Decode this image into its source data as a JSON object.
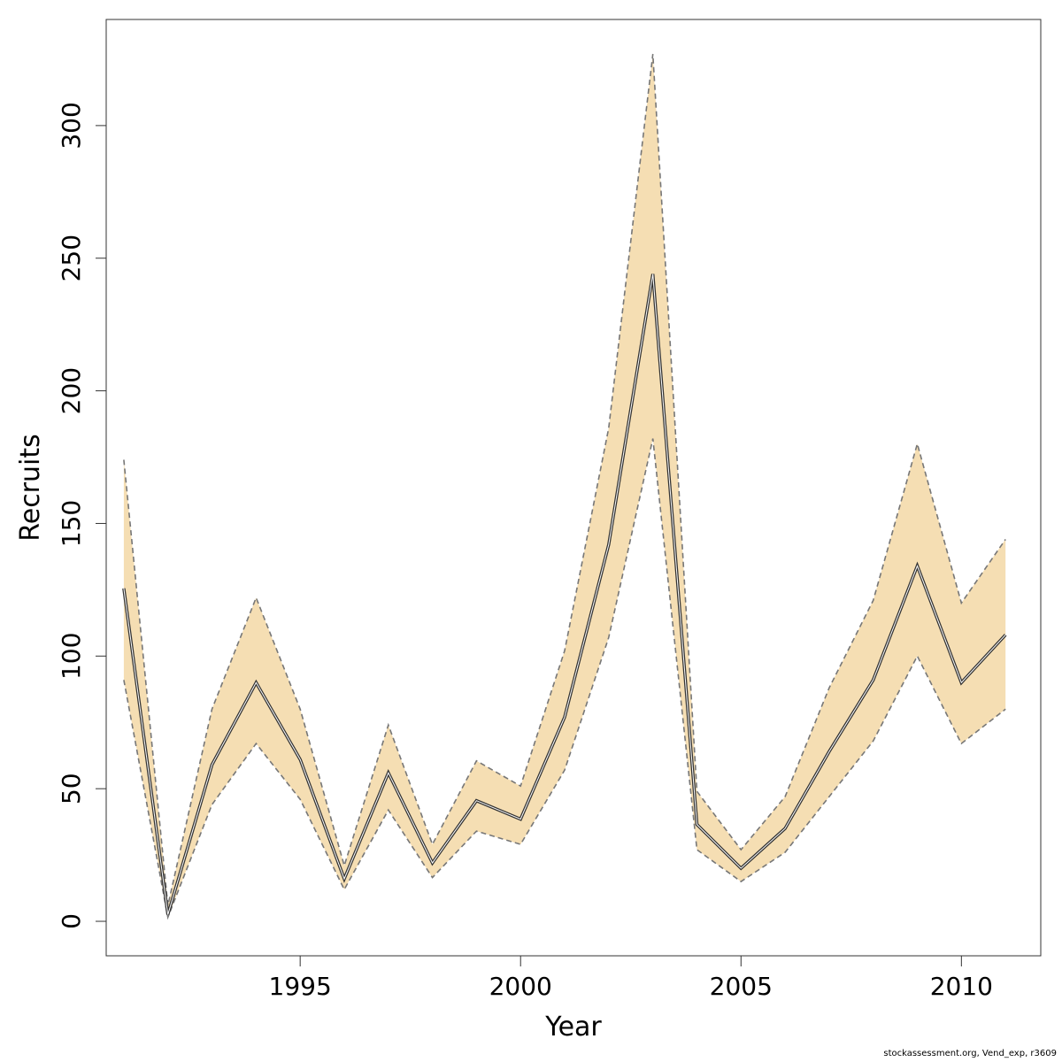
{
  "chart_data": {
    "type": "area",
    "title": "",
    "xlabel": "Year",
    "ylabel": "Recruits",
    "xlim": [
      1990.6,
      2011.8
    ],
    "ylim": [
      -13,
      340
    ],
    "x_ticks": [
      1995,
      2000,
      2005,
      2010
    ],
    "y_ticks": [
      0,
      50,
      100,
      150,
      200,
      250,
      300
    ],
    "grid": false,
    "legend": "none",
    "x": [
      1991,
      1992,
      1993,
      1994,
      1995,
      1996,
      1997,
      1998,
      1999,
      2000,
      2001,
      2002,
      2003,
      2004,
      2005,
      2006,
      2007,
      2008,
      2009,
      2010,
      2011
    ],
    "series": [
      {
        "role": "estimate",
        "values": [
          125.5,
          2.5,
          59,
          90,
          61,
          16,
          56,
          22,
          45.5,
          38.5,
          77,
          142,
          244,
          36.5,
          20,
          35,
          64,
          91,
          134,
          90,
          108
        ]
      },
      {
        "role": "upper",
        "values": [
          174,
          6,
          80,
          122,
          80,
          21,
          74,
          29,
          60.5,
          51,
          102,
          186,
          327,
          49,
          27,
          47,
          88,
          121,
          180,
          120,
          144
        ]
      },
      {
        "role": "lower",
        "values": [
          91,
          1.5,
          44,
          67,
          46,
          12,
          42,
          16.5,
          34,
          29,
          57,
          107,
          182,
          27,
          15,
          26,
          47,
          68,
          100,
          67,
          80
        ]
      }
    ],
    "colors": {
      "band": "#f5deb3",
      "bound_line": "#777777",
      "estimate_outer": "#333333",
      "estimate_inner": "#ffffff"
    }
  },
  "footer": "stockassessment.org, Vend_exp, r3609"
}
